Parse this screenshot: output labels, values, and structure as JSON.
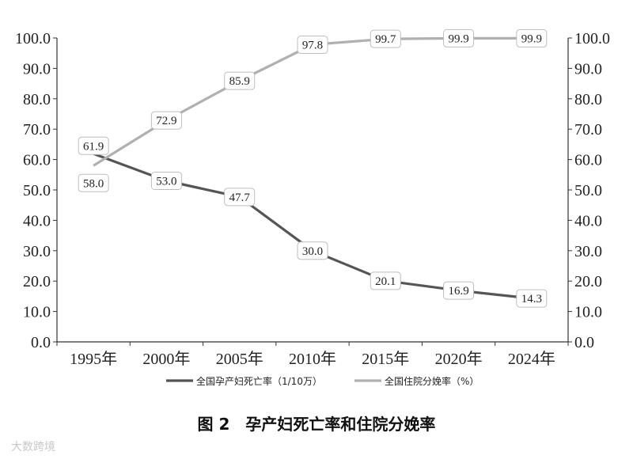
{
  "chart_data": {
    "type": "line",
    "categories": [
      "1995年",
      "2000年",
      "2005年",
      "2010年",
      "2015年",
      "2020年",
      "2024年"
    ],
    "series": [
      {
        "name": "全国孕产妇死亡率（1/10万）",
        "values": [
          61.9,
          53.0,
          47.7,
          30.0,
          20.1,
          16.9,
          14.3
        ],
        "color": "#555555",
        "axis": "left"
      },
      {
        "name": "全国住院分娩率（%）",
        "values": [
          58.0,
          72.9,
          85.9,
          97.8,
          99.7,
          99.9,
          99.9
        ],
        "color": "#b0b0b0",
        "axis": "right"
      }
    ],
    "ylim": [
      0,
      100
    ],
    "y2lim": [
      0,
      100
    ],
    "yticks": [
      "0.0",
      "10.0",
      "20.0",
      "30.0",
      "40.0",
      "50.0",
      "60.0",
      "70.0",
      "80.0",
      "90.0",
      "100.0"
    ],
    "grid": false,
    "legend_position": "bottom",
    "data_labels": true
  },
  "caption": "图 2　孕产妇死亡率和住院分娩率",
  "watermark": "大数跨境"
}
